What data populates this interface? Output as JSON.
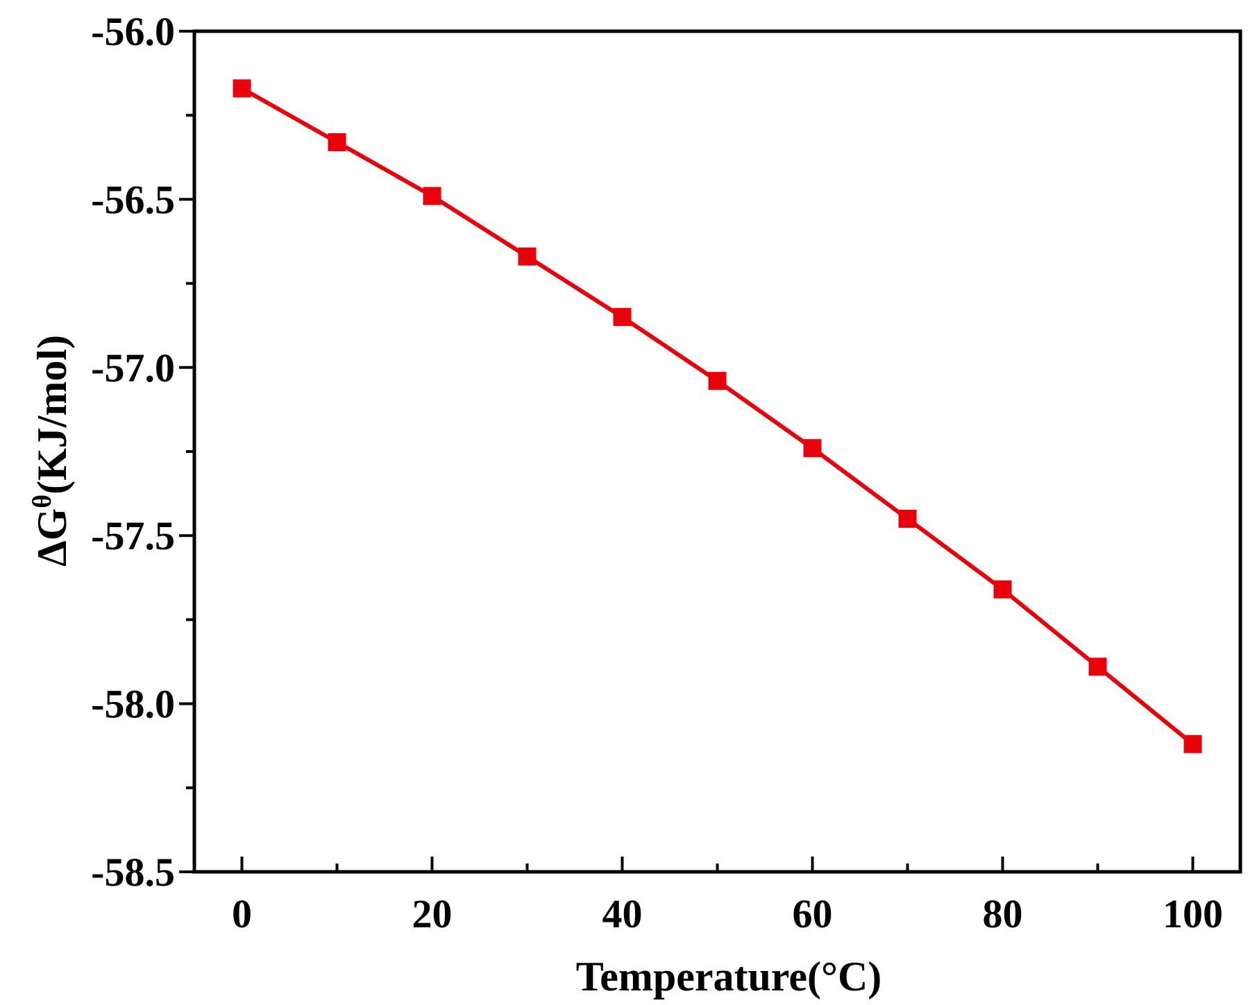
{
  "chart_data": {
    "type": "line",
    "title": "",
    "xlabel": "Temperature(°C)",
    "ylabel": {
      "prefix": "ΔG",
      "sup": "θ",
      "suffix": "(KJ/mol)"
    },
    "xlim": [
      -5,
      105
    ],
    "ylim": [
      -58.5,
      -56.0
    ],
    "x_ticks": [
      0,
      20,
      40,
      60,
      80,
      100
    ],
    "x_minor_ticks": [
      10,
      30,
      50,
      70,
      90
    ],
    "y_ticks": [
      -56.0,
      -56.5,
      -57.0,
      -57.5,
      -58.0,
      -58.5
    ],
    "y_minor_ticks": [
      -56.25,
      -56.75,
      -57.25,
      -57.75,
      -58.25
    ],
    "y_tick_labels": [
      "-56.0",
      "-56.5",
      "-57.0",
      "-57.5",
      "-58.0",
      "-58.5"
    ],
    "x_tick_labels": [
      "0",
      "20",
      "40",
      "60",
      "80",
      "100"
    ],
    "grid": false,
    "series": [
      {
        "color": "#e8000b",
        "marker": "square",
        "x": [
          0,
          10,
          20,
          30,
          40,
          50,
          60,
          70,
          80,
          90,
          100
        ],
        "y": [
          -56.17,
          -56.33,
          -56.49,
          -56.67,
          -56.85,
          -57.04,
          -57.24,
          -57.45,
          -57.66,
          -57.89,
          -58.12
        ]
      }
    ]
  }
}
